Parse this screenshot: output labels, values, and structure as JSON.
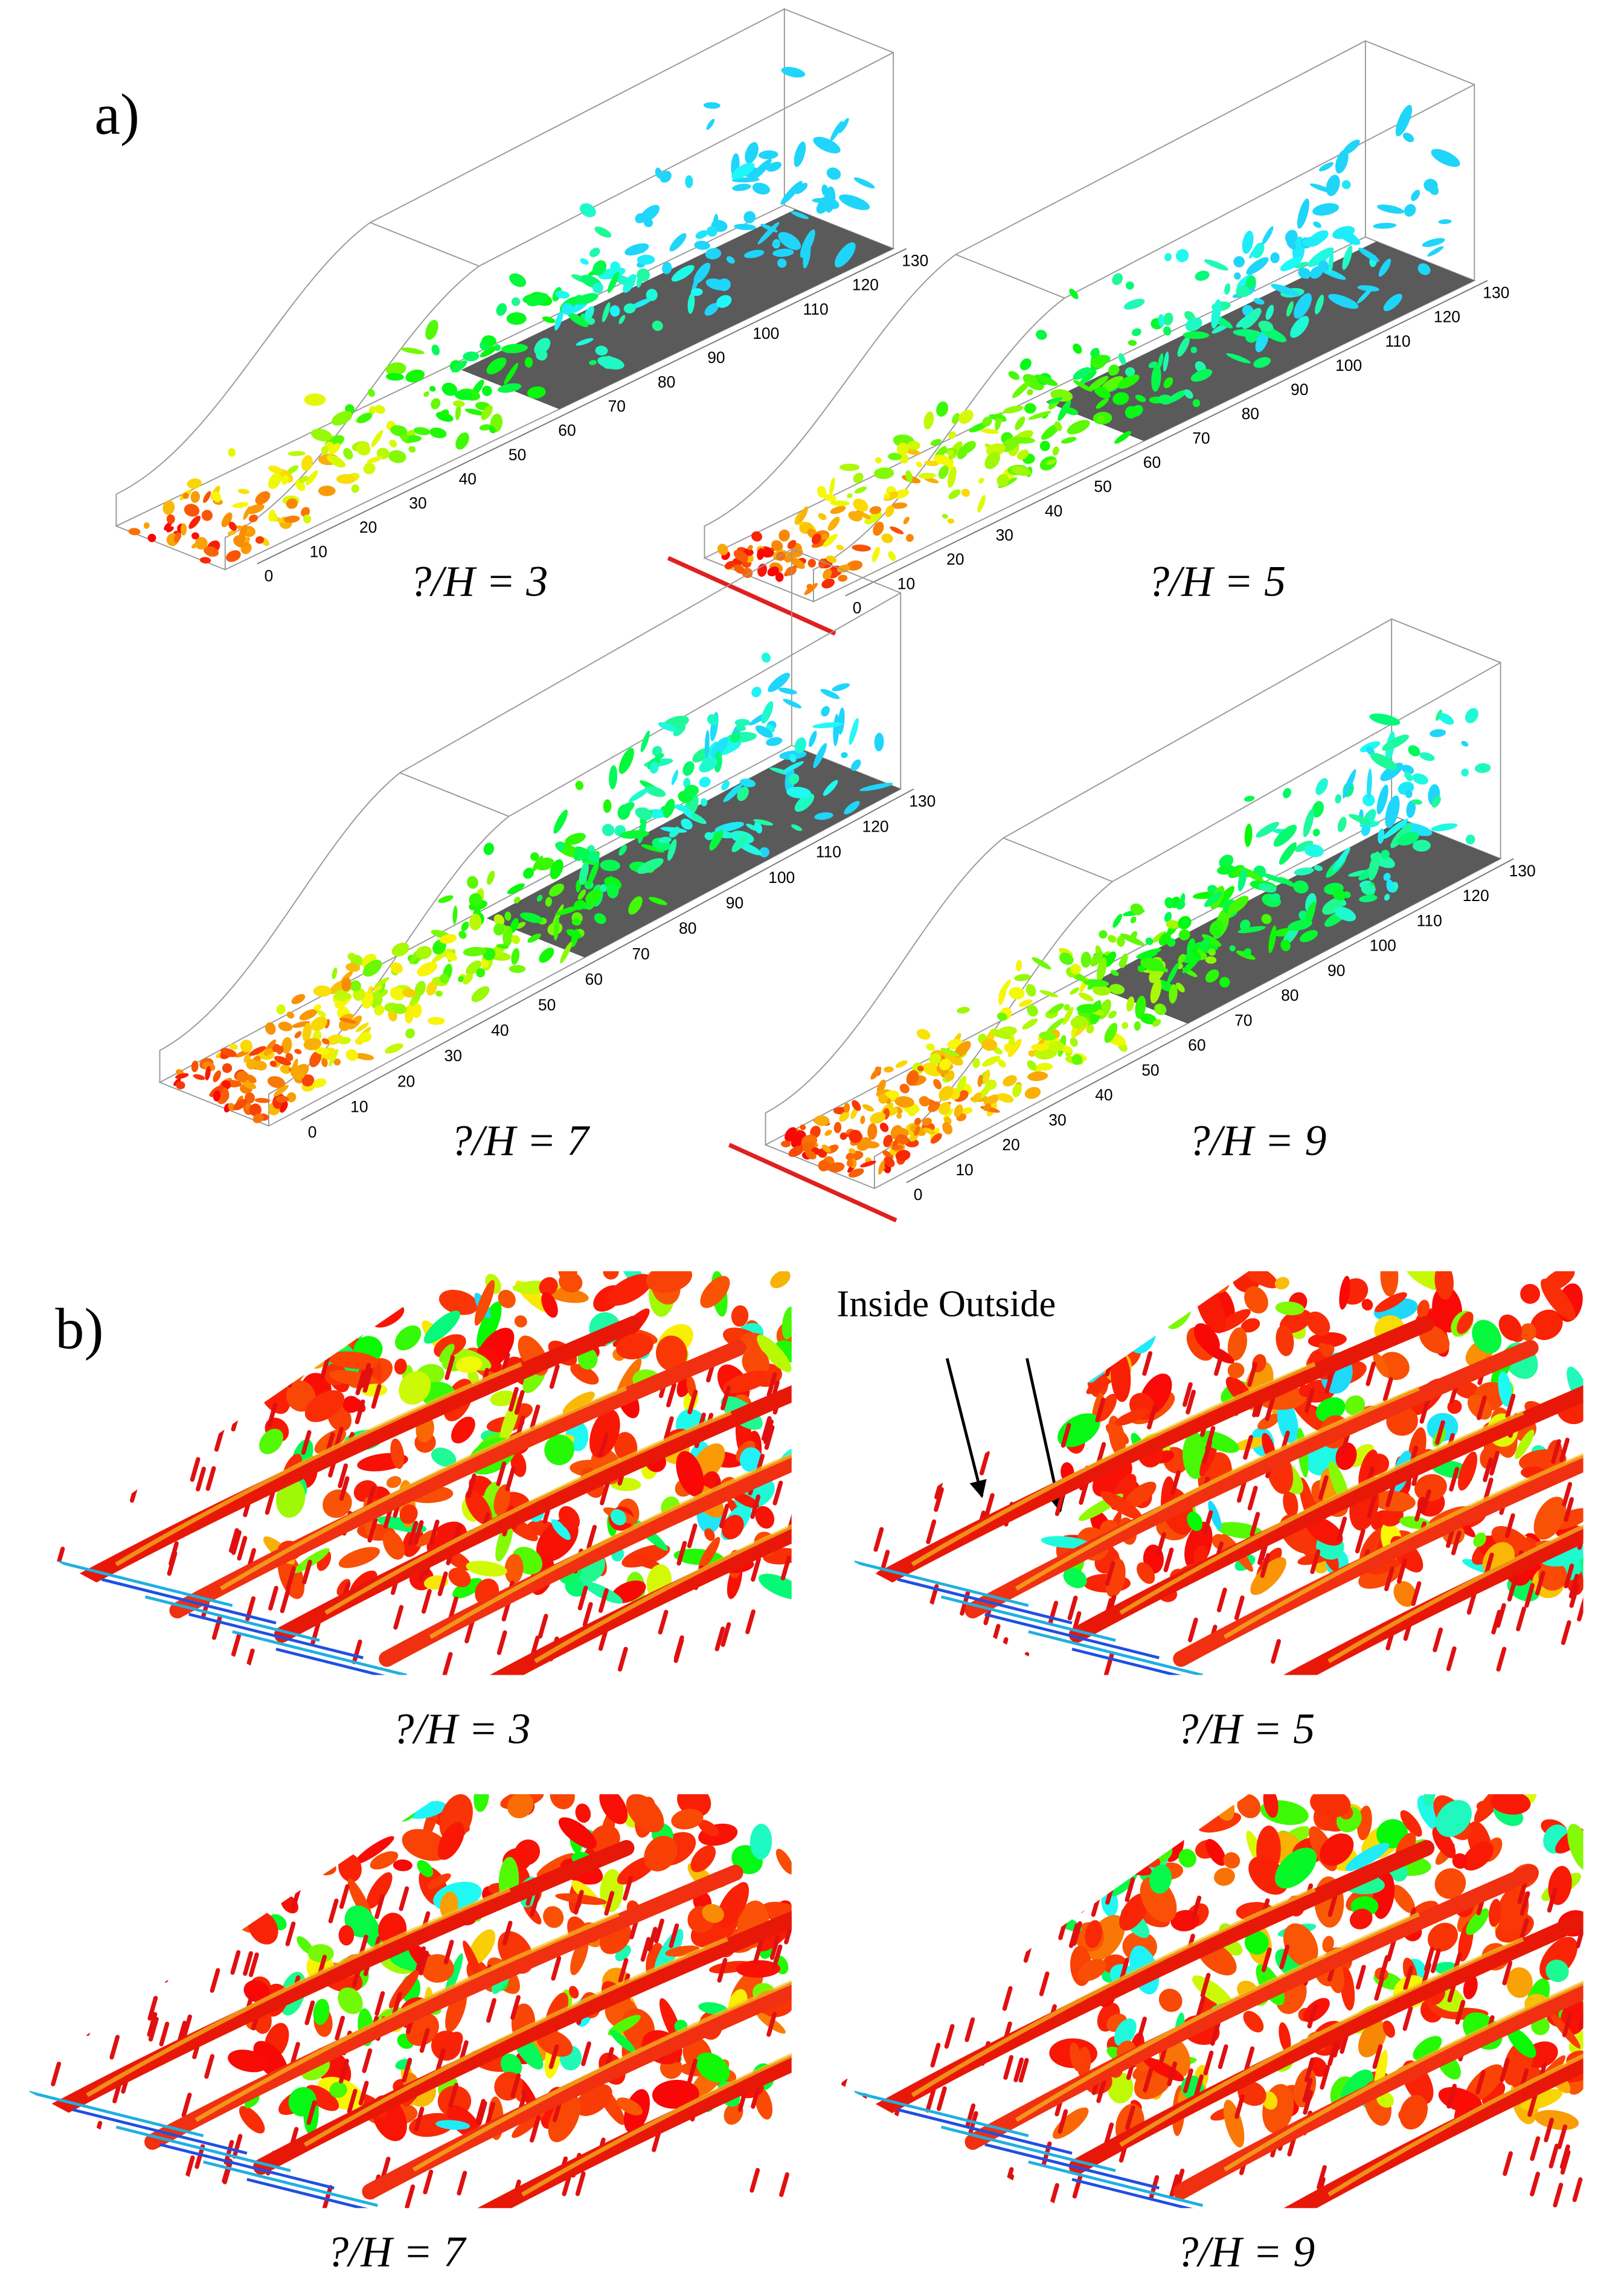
{
  "panel_a": {
    "label": "a)",
    "views": [
      {
        "caption": "?/H = 3",
        "ticks": [
          0,
          10,
          20,
          30,
          40,
          50,
          60,
          70,
          80,
          90,
          100,
          110,
          120,
          130
        ]
      },
      {
        "caption": "?/H = 5",
        "ticks": [
          0,
          10,
          20,
          30,
          40,
          50,
          60,
          70,
          80,
          90,
          100,
          110,
          120,
          130
        ]
      },
      {
        "caption": "?/H = 7",
        "ticks": [
          0,
          10,
          20,
          30,
          40,
          50,
          60,
          70,
          80,
          90,
          100,
          110,
          120,
          130
        ]
      },
      {
        "caption": "?/H = 9",
        "ticks": [
          0,
          10,
          20,
          30,
          40,
          50,
          60,
          70,
          80,
          90,
          100,
          110,
          120,
          130
        ]
      }
    ]
  },
  "panel_b": {
    "label": "b)",
    "annotation": "Inside Outside",
    "views": [
      {
        "caption": "?/H = 3"
      },
      {
        "caption": "?/H = 5"
      },
      {
        "caption": "?/H = 7"
      },
      {
        "caption": "?/H = 9"
      }
    ]
  }
}
